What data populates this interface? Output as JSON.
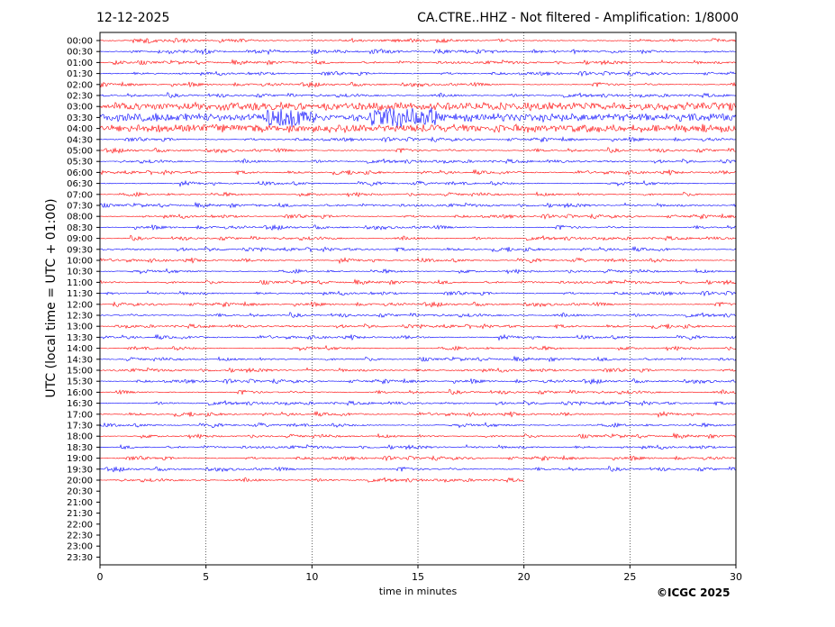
{
  "header": {
    "date": "12-12-2025",
    "title": "CA.CTRE..HHZ - Not filtered - Amplification: 1/8000"
  },
  "footer": {
    "copyright": "©ICGC 2025"
  },
  "chart_data": {
    "type": "line",
    "xlabel": "time in minutes",
    "ylabel": "UTC (local time = UTC + 01:00)",
    "xlim": [
      0,
      30
    ],
    "x_ticks": [
      "0",
      "5",
      "10",
      "15",
      "20",
      "25",
      "30"
    ],
    "y_ticks": [
      "00:00",
      "00:30",
      "01:00",
      "01:30",
      "02:00",
      "02:30",
      "03:00",
      "03:30",
      "04:00",
      "04:30",
      "05:00",
      "05:30",
      "06:00",
      "06:30",
      "07:00",
      "07:30",
      "08:00",
      "08:30",
      "09:00",
      "09:30",
      "10:00",
      "10:30",
      "11:00",
      "11:30",
      "12:00",
      "12:30",
      "13:00",
      "13:30",
      "14:00",
      "14:30",
      "15:00",
      "15:30",
      "16:00",
      "16:30",
      "17:00",
      "17:30",
      "18:00",
      "18:30",
      "19:00",
      "19:30",
      "20:00",
      "20:30",
      "21:00",
      "21:30",
      "22:00",
      "22:30",
      "23:00",
      "23:30"
    ],
    "vertical_gridlines": [
      5,
      10,
      15,
      20,
      25
    ],
    "trace_colors": [
      "#ff0000",
      "#0000ff"
    ],
    "last_trace_end_minute": 20,
    "event": {
      "rows": [
        "03:00",
        "03:30",
        "04:00"
      ]
    },
    "frame_color": "#000000"
  }
}
